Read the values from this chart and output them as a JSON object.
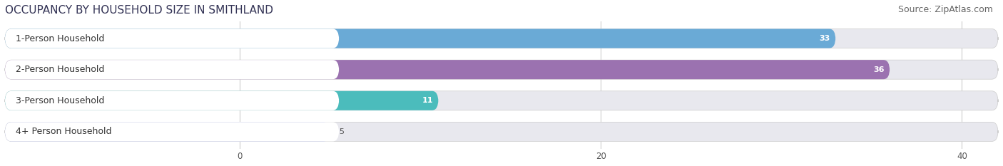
{
  "title": "OCCUPANCY BY HOUSEHOLD SIZE IN SMITHLAND",
  "source": "Source: ZipAtlas.com",
  "categories": [
    "1-Person Household",
    "2-Person Household",
    "3-Person Household",
    "4+ Person Household"
  ],
  "values": [
    33,
    36,
    11,
    5
  ],
  "bar_colors": [
    "#6aaad6",
    "#9b72b0",
    "#4bbcbc",
    "#aab2e8"
  ],
  "xlim_left": -13,
  "xlim_right": 42,
  "xticks": [
    0,
    20,
    40
  ],
  "fig_background": "#ffffff",
  "bar_bg_color": "#e8e8ee",
  "label_box_color": "#ffffff",
  "title_fontsize": 11,
  "source_fontsize": 9,
  "label_fontsize": 9,
  "value_fontsize": 8,
  "bar_height": 0.62,
  "fig_width": 14.06,
  "fig_height": 2.33
}
